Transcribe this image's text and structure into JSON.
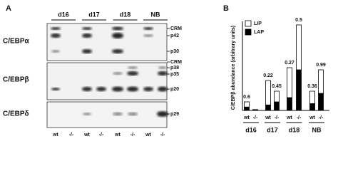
{
  "blot": {
    "panel_label": "A",
    "groups": [
      "d16",
      "d17",
      "d18",
      "NB"
    ],
    "lanes": [
      "wt",
      "-/-",
      "wt",
      "-/-",
      "wt",
      "-/-",
      "wt",
      "-/-"
    ],
    "proteins": [
      {
        "name": "C/EBPα",
        "markers": [
          "CRM",
          "p42",
          "p30"
        ]
      },
      {
        "name": "C/EBPβ",
        "markers": [
          "CRM",
          "p38",
          "p35",
          "p20"
        ]
      },
      {
        "name": "C/EBPδ",
        "markers": [
          "p29"
        ]
      }
    ]
  },
  "chart_data": {
    "type": "bar",
    "panel_label": "B",
    "stacked": true,
    "y_label": "C/EBPβ abundance (arbitrary units)",
    "groups": [
      "d16",
      "d17",
      "d18",
      "NB"
    ],
    "categories": [
      "wt",
      "-/-",
      "wt",
      "-/-",
      "wt",
      "-/-",
      "wt",
      "-/-"
    ],
    "series": [
      {
        "name": "LAP",
        "color": "#000000",
        "values": [
          8,
          1,
          13,
          20,
          30,
          95,
          16,
          40
        ]
      },
      {
        "name": "LIP",
        "color": "#ffffff",
        "values": [
          12,
          1,
          57,
          25,
          70,
          105,
          29,
          55
        ]
      }
    ],
    "annotations": [
      "0.6",
      null,
      "0.22",
      "0.45",
      "0.27",
      "0.5",
      "0.36",
      "0.99"
    ],
    "ylim": [
      0,
      200
    ]
  }
}
